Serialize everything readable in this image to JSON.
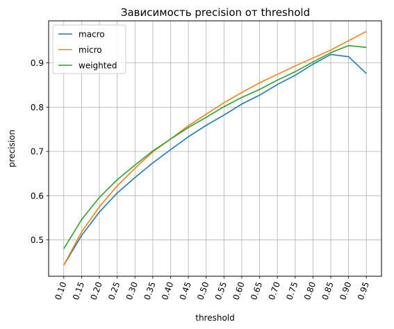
{
  "chart_data": {
    "type": "line",
    "title": "Зависимость precision от threshold",
    "xlabel": "threshold",
    "ylabel": "precision",
    "x": [
      0.1,
      0.15,
      0.2,
      0.25,
      0.3,
      0.35,
      0.4,
      0.45,
      0.5,
      0.55,
      0.6,
      0.65,
      0.7,
      0.75,
      0.8,
      0.85,
      0.9,
      0.95
    ],
    "x_tick_labels": [
      "0.10",
      "0.15",
      "0.20",
      "0.25",
      "0.30",
      "0.35",
      "0.40",
      "0.45",
      "0.50",
      "0.55",
      "0.60",
      "0.65",
      "0.70",
      "0.75",
      "0.80",
      "0.85",
      "0.90",
      "0.95"
    ],
    "y_ticks": [
      0.5,
      0.6,
      0.7,
      0.8,
      0.9
    ],
    "y_tick_labels": [
      "0.5",
      "0.6",
      "0.7",
      "0.8",
      "0.9"
    ],
    "xlim": [
      0.0575,
      0.9925
    ],
    "ylim": [
      0.418,
      0.995
    ],
    "grid": true,
    "legend_position": "top-left",
    "series": [
      {
        "name": "macro",
        "color": "#1f77b4",
        "values": [
          0.443,
          0.51,
          0.563,
          0.606,
          0.641,
          0.674,
          0.704,
          0.733,
          0.759,
          0.782,
          0.807,
          0.827,
          0.851,
          0.872,
          0.897,
          0.919,
          0.914,
          0.876
        ]
      },
      {
        "name": "micro",
        "color": "#ff7f0e",
        "values": [
          0.443,
          0.518,
          0.575,
          0.622,
          0.662,
          0.699,
          0.728,
          0.758,
          0.784,
          0.81,
          0.833,
          0.855,
          0.874,
          0.893,
          0.911,
          0.929,
          0.95,
          0.971
        ]
      },
      {
        "name": "weighted",
        "color": "#2ca02c",
        "values": [
          0.48,
          0.546,
          0.596,
          0.636,
          0.669,
          0.701,
          0.728,
          0.754,
          0.777,
          0.801,
          0.822,
          0.84,
          0.861,
          0.88,
          0.902,
          0.923,
          0.939,
          0.935
        ]
      }
    ]
  }
}
